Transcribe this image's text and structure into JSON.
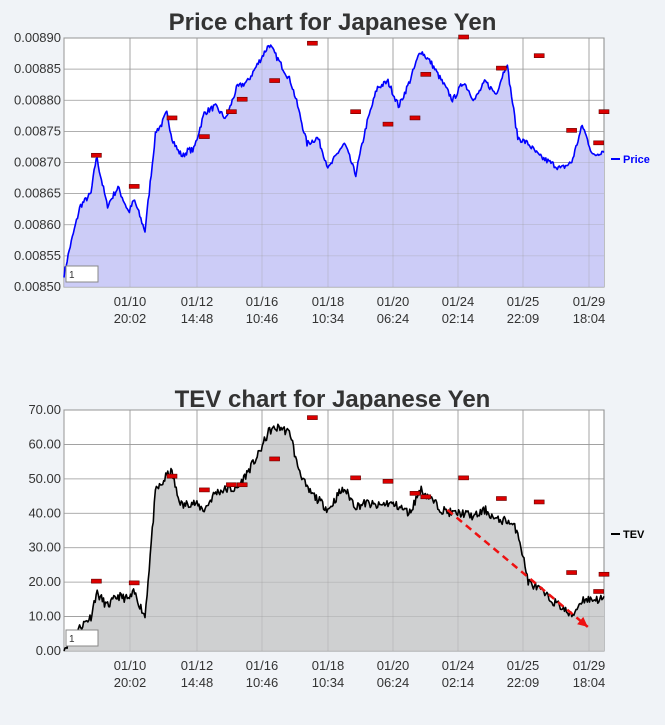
{
  "colors": {
    "page_bg": "#f0f3f7",
    "plot_bg": "#ffffff",
    "grid": "#999999",
    "price_line": "#0000ff",
    "price_fill": "#ccccf7",
    "tev_line": "#000000",
    "tev_fill": "#cfd0d1",
    "marker": "#dd0000",
    "arrow": "#ee1111"
  },
  "chart_data": [
    {
      "type": "area",
      "title": "Price chart for Japanese Yen",
      "ylim": [
        0.0085,
        0.0089
      ],
      "yticks": [
        "0.00850",
        "0.00855",
        "0.00860",
        "0.00865",
        "0.00870",
        "0.00875",
        "0.00880",
        "0.00885",
        "0.00890"
      ],
      "xticks": [
        [
          "01/10",
          "20:02"
        ],
        [
          "01/12",
          "14:48"
        ],
        [
          "01/16",
          "10:46"
        ],
        [
          "01/18",
          "10:34"
        ],
        [
          "01/20",
          "06:24"
        ],
        [
          "01/24",
          "02:14"
        ],
        [
          "01/25",
          "22:09"
        ],
        [
          "01/29",
          "18:04"
        ]
      ],
      "legend": "Price",
      "legend_position": "right",
      "box_label": "1",
      "grid": true,
      "series": [
        {
          "name": "Price",
          "x": [
            0,
            0.01,
            0.03,
            0.05,
            0.06,
            0.08,
            0.1,
            0.12,
            0.13,
            0.15,
            0.17,
            0.18,
            0.19,
            0.2,
            0.21,
            0.22,
            0.23,
            0.24,
            0.26,
            0.28,
            0.3,
            0.32,
            0.34,
            0.36,
            0.38,
            0.4,
            0.42,
            0.43,
            0.45,
            0.47,
            0.49,
            0.51,
            0.52,
            0.54,
            0.56,
            0.58,
            0.6,
            0.62,
            0.64,
            0.66,
            0.68,
            0.7,
            0.72,
            0.74,
            0.76,
            0.78,
            0.8,
            0.82,
            0.84,
            0.86,
            0.88,
            0.9,
            0.92,
            0.94,
            0.96,
            0.98,
            1.0
          ],
          "values": [
            0.00852,
            0.00856,
            0.00863,
            0.00865,
            0.00871,
            0.00863,
            0.00866,
            0.00862,
            0.00864,
            0.00859,
            0.00875,
            0.00876,
            0.00878,
            0.00874,
            0.00872,
            0.00871,
            0.00872,
            0.00872,
            0.00878,
            0.00879,
            0.00877,
            0.00882,
            0.00883,
            0.00886,
            0.00889,
            0.00886,
            0.00883,
            0.0088,
            0.00873,
            0.00874,
            0.00869,
            0.00872,
            0.00873,
            0.00868,
            0.00876,
            0.00882,
            0.00883,
            0.00879,
            0.00883,
            0.00888,
            0.00886,
            0.00883,
            0.0088,
            0.00883,
            0.0088,
            0.00883,
            0.00881,
            0.00886,
            0.00874,
            0.00873,
            0.00871,
            0.0087,
            0.00869,
            0.0087,
            0.00876,
            0.00871,
            0.00872
          ]
        }
      ],
      "markers": [
        {
          "x": 0.06,
          "y": 0.00871
        },
        {
          "x": 0.13,
          "y": 0.00866
        },
        {
          "x": 0.2,
          "y": 0.00877
        },
        {
          "x": 0.26,
          "y": 0.00874
        },
        {
          "x": 0.31,
          "y": 0.00878
        },
        {
          "x": 0.33,
          "y": 0.0088
        },
        {
          "x": 0.39,
          "y": 0.00883
        },
        {
          "x": 0.46,
          "y": 0.00889
        },
        {
          "x": 0.54,
          "y": 0.00878
        },
        {
          "x": 0.6,
          "y": 0.00876
        },
        {
          "x": 0.65,
          "y": 0.00877
        },
        {
          "x": 0.67,
          "y": 0.00884
        },
        {
          "x": 0.74,
          "y": 0.0089
        },
        {
          "x": 0.81,
          "y": 0.00885
        },
        {
          "x": 0.88,
          "y": 0.00887
        },
        {
          "x": 0.94,
          "y": 0.00875
        },
        {
          "x": 0.99,
          "y": 0.00873
        },
        {
          "x": 1.0,
          "y": 0.00878
        }
      ]
    },
    {
      "type": "area",
      "title": "TEV chart for Japanese Yen",
      "ylim": [
        0,
        70
      ],
      "yticks": [
        "0.00",
        "10.00",
        "20.00",
        "30.00",
        "40.00",
        "50.00",
        "60.00",
        "70.00"
      ],
      "xticks": [
        [
          "01/10",
          "20:02"
        ],
        [
          "01/12",
          "14:48"
        ],
        [
          "01/16",
          "10:46"
        ],
        [
          "01/18",
          "10:34"
        ],
        [
          "01/20",
          "06:24"
        ],
        [
          "01/24",
          "02:14"
        ],
        [
          "01/25",
          "22:09"
        ],
        [
          "01/29",
          "18:04"
        ]
      ],
      "legend": "TEV",
      "legend_position": "right",
      "box_label": "1",
      "grid": true,
      "series": [
        {
          "name": "TEV",
          "x": [
            0,
            0.01,
            0.03,
            0.05,
            0.06,
            0.08,
            0.1,
            0.12,
            0.13,
            0.15,
            0.17,
            0.18,
            0.19,
            0.2,
            0.21,
            0.22,
            0.23,
            0.24,
            0.26,
            0.28,
            0.3,
            0.32,
            0.34,
            0.36,
            0.38,
            0.4,
            0.42,
            0.43,
            0.45,
            0.47,
            0.49,
            0.51,
            0.52,
            0.54,
            0.56,
            0.58,
            0.6,
            0.62,
            0.64,
            0.66,
            0.68,
            0.7,
            0.72,
            0.74,
            0.76,
            0.78,
            0.8,
            0.82,
            0.84,
            0.86,
            0.88,
            0.9,
            0.92,
            0.94,
            0.96,
            0.98,
            1.0
          ],
          "values": [
            0.5,
            3.0,
            7.0,
            10.0,
            17.0,
            13.0,
            16.0,
            15.0,
            17.0,
            10.0,
            47.0,
            48.0,
            51.0,
            52.0,
            45.0,
            42.0,
            43.0,
            43.0,
            41.0,
            46.0,
            47.0,
            47.0,
            52.0,
            57.0,
            64.0,
            65.0,
            63.0,
            55.0,
            47.0,
            44.0,
            41.0,
            46.0,
            47.0,
            42.0,
            43.0,
            42.0,
            43.0,
            42.0,
            40.0,
            47.0,
            44.0,
            41.0,
            40.0,
            40.0,
            39.0,
            41.0,
            38.0,
            38.0,
            35.0,
            20.0,
            18.0,
            15.0,
            13.0,
            10.0,
            15.0,
            15.0,
            15.0
          ]
        }
      ],
      "markers": [
        {
          "x": 0.06,
          "y": 20
        },
        {
          "x": 0.13,
          "y": 19.5
        },
        {
          "x": 0.2,
          "y": 50.5
        },
        {
          "x": 0.26,
          "y": 46.5
        },
        {
          "x": 0.31,
          "y": 48
        },
        {
          "x": 0.33,
          "y": 48
        },
        {
          "x": 0.39,
          "y": 55.5
        },
        {
          "x": 0.46,
          "y": 67.5
        },
        {
          "x": 0.54,
          "y": 50
        },
        {
          "x": 0.6,
          "y": 49
        },
        {
          "x": 0.65,
          "y": 45.5
        },
        {
          "x": 0.67,
          "y": 44.5
        },
        {
          "x": 0.74,
          "y": 50
        },
        {
          "x": 0.81,
          "y": 44
        },
        {
          "x": 0.88,
          "y": 43
        },
        {
          "x": 0.94,
          "y": 22.5
        },
        {
          "x": 0.99,
          "y": 17
        },
        {
          "x": 1.0,
          "y": 22
        }
      ],
      "annotation": {
        "type": "dashed-arrow",
        "from": {
          "x": 0.71,
          "y": 41
        },
        "to": {
          "x": 0.97,
          "y": 7
        }
      }
    }
  ]
}
